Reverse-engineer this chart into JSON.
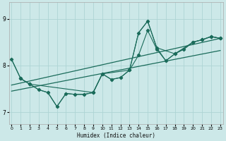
{
  "xlabel": "Humidex (Indice chaleur)",
  "bg_color": "#cce8e8",
  "line_color": "#1a6b5a",
  "grid_color": "#add4d4",
  "x_ticks": [
    0,
    1,
    2,
    3,
    4,
    5,
    6,
    7,
    8,
    9,
    10,
    11,
    12,
    13,
    14,
    15,
    16,
    17,
    18,
    19,
    20,
    21,
    22,
    23
  ],
  "y_ticks": [
    7,
    8,
    9
  ],
  "ylim": [
    6.75,
    9.35
  ],
  "xlim": [
    -0.3,
    23.3
  ],
  "curve1_x": [
    0,
    1,
    2,
    3,
    4,
    5,
    6,
    7,
    8,
    9,
    10,
    11,
    12,
    13,
    14,
    15,
    16,
    17,
    18,
    19,
    20,
    21,
    22,
    23
  ],
  "curve1_y": [
    8.13,
    7.72,
    7.6,
    7.48,
    7.42,
    7.12,
    7.4,
    7.38,
    7.38,
    7.42,
    7.82,
    7.7,
    7.74,
    7.9,
    8.22,
    8.75,
    8.35,
    8.1,
    8.25,
    8.35,
    8.5,
    8.55,
    8.62,
    8.58
  ],
  "curve2_x": [
    0,
    1,
    2,
    3,
    4,
    5,
    6,
    7,
    8,
    9,
    10,
    11,
    12,
    13,
    14,
    15,
    16,
    17,
    18,
    19,
    20,
    21,
    22,
    23
  ],
  "curve2_y": [
    8.13,
    7.72,
    7.6,
    7.48,
    7.42,
    7.12,
    7.4,
    7.38,
    7.38,
    7.42,
    7.82,
    7.7,
    7.74,
    7.9,
    8.7,
    8.95,
    8.38,
    8.1,
    8.25,
    8.35,
    8.5,
    8.55,
    8.62,
    8.58
  ],
  "curve3_x": [
    1,
    2,
    9,
    10,
    13,
    14,
    15,
    16,
    18,
    20,
    21,
    22,
    23
  ],
  "curve3_y": [
    7.72,
    7.6,
    7.42,
    7.82,
    7.9,
    8.7,
    8.95,
    8.38,
    8.25,
    8.5,
    8.55,
    8.62,
    8.58
  ],
  "trend1_x": [
    0,
    23
  ],
  "trend1_y": [
    7.58,
    8.58
  ],
  "trend2_x": [
    0,
    23
  ],
  "trend2_y": [
    7.45,
    8.32
  ]
}
